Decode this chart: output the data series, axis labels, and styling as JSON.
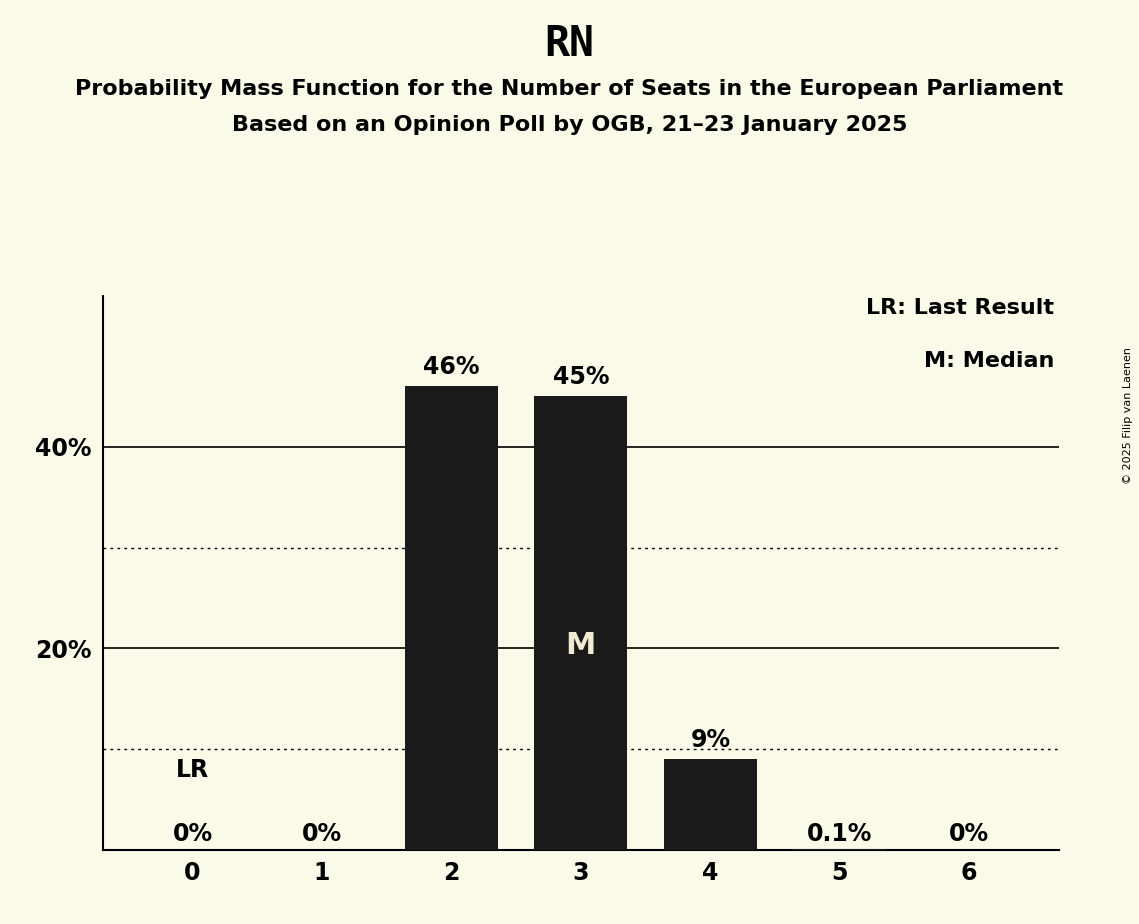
{
  "title": "RN",
  "subtitle1": "Probability Mass Function for the Number of Seats in the European Parliament",
  "subtitle2": "Based on an Opinion Poll by OGB, 21–23 January 2025",
  "copyright": "© 2025 Filip van Laenen",
  "categories": [
    0,
    1,
    2,
    3,
    4,
    5,
    6
  ],
  "values": [
    0.0,
    0.0,
    0.46,
    0.45,
    0.09,
    0.001,
    0.0
  ],
  "bar_color": "#1a1a1a",
  "background_color": "#fafae8",
  "label_texts": [
    "0%",
    "0%",
    "46%",
    "45%",
    "9%",
    "0.1%",
    "0%"
  ],
  "median_bar": 3,
  "lr_bar": 0,
  "legend_lr": "LR: Last Result",
  "legend_m": "M: Median",
  "yticks": [
    0.2,
    0.4
  ],
  "ytick_labels": [
    "20%",
    "40%"
  ],
  "ylim": [
    0,
    0.55
  ],
  "dotted_lines": [
    0.1,
    0.3
  ],
  "solid_lines": [
    0.2,
    0.4
  ],
  "bar_width": 0.72,
  "title_fontsize": 30,
  "subtitle_fontsize": 16,
  "label_fontsize": 17,
  "tick_fontsize": 17,
  "legend_fontsize": 16,
  "median_label_color": "#f0ead2",
  "median_label_fontsize": 22,
  "lr_label_fontsize": 17
}
